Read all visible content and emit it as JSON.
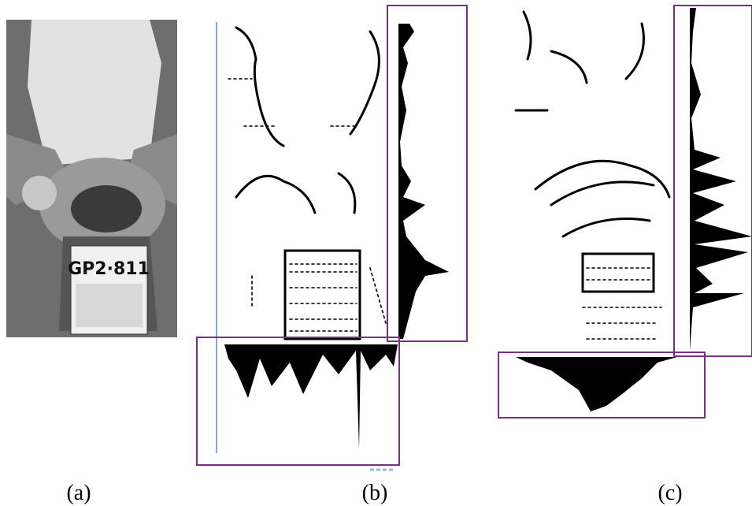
{
  "panels": [
    {
      "caption": "(a)",
      "plate_text": "GP2·811"
    },
    {
      "caption": "(b)"
    },
    {
      "caption": "(c)"
    }
  ]
}
